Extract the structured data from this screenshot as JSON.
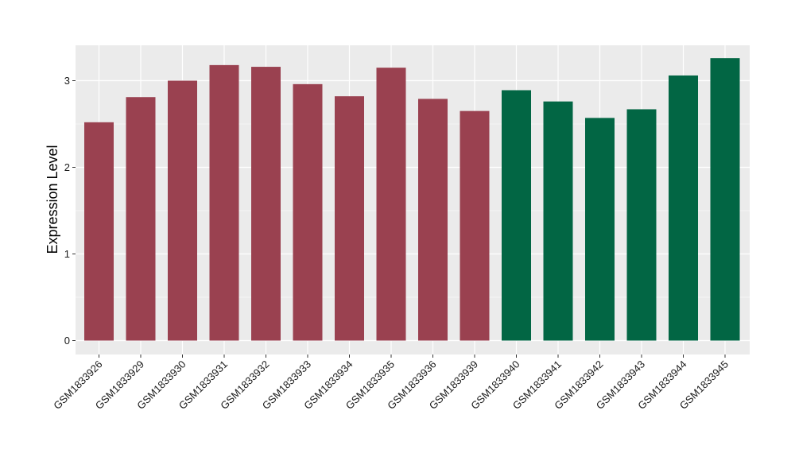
{
  "chart_data": {
    "type": "bar",
    "ylabel": "Expression Level",
    "xlabel": "",
    "ylim": [
      0,
      3.4
    ],
    "yticks": [
      0,
      1,
      2,
      3
    ],
    "grid": true,
    "legend": "none",
    "colors": {
      "panel_bg": "#EBEBEB",
      "grid": "#FFFFFF",
      "group_a": "#9A4150",
      "group_b": "#026644"
    },
    "categories": [
      "GSM1833926",
      "GSM1833929",
      "GSM1833930",
      "GSM1833931",
      "GSM1833932",
      "GSM1833933",
      "GSM1833934",
      "GSM1833935",
      "GSM1833936",
      "GSM1833939",
      "GSM1833940",
      "GSM1833941",
      "GSM1833942",
      "GSM1833943",
      "GSM1833944",
      "GSM1833945"
    ],
    "values": [
      2.52,
      2.81,
      3.0,
      3.18,
      3.16,
      2.96,
      2.82,
      3.15,
      2.79,
      2.65,
      2.89,
      2.76,
      2.57,
      2.67,
      3.06,
      3.26
    ],
    "bar_group": [
      "a",
      "a",
      "a",
      "a",
      "a",
      "a",
      "a",
      "a",
      "a",
      "a",
      "b",
      "b",
      "b",
      "b",
      "b",
      "b"
    ]
  }
}
